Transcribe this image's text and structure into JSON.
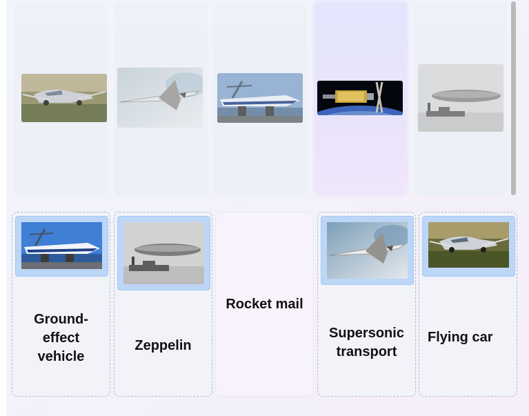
{
  "tray": {
    "cards": [
      {
        "icon": "flying-car-image",
        "selected": false
      },
      {
        "icon": "supersonic-transport-image",
        "selected": false
      },
      {
        "icon": "ground-effect-vehicle-image",
        "selected": false
      },
      {
        "icon": "rocket-mail-image",
        "selected": true
      },
      {
        "icon": "zeppelin-image",
        "selected": false
      }
    ]
  },
  "slots": [
    {
      "label": "Ground-effect vehicle",
      "line1": "Ground-",
      "line2": "effect",
      "line3": "vehicle",
      "image": "ground-effect-vehicle-image"
    },
    {
      "label": "Zeppelin",
      "image": "zeppelin-image"
    },
    {
      "label": "Rocket mail",
      "image": null
    },
    {
      "label": "Supersonic transport",
      "line1": "Supersonic",
      "line2": "transport",
      "image": "supersonic-transport-image"
    },
    {
      "label": "Flying car",
      "image": "flying-car-image"
    }
  ],
  "colors": {
    "selected_card": "#e3e6fd",
    "image_frame": "#bcd6f8",
    "slot_border": "#b5bac6"
  }
}
